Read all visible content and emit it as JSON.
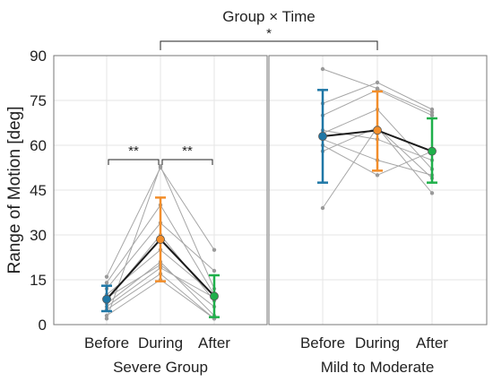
{
  "chart_data": {
    "type": "line",
    "title": "Group × Time",
    "title_annotation": "*",
    "ylabel": "Range of Motion [deg]",
    "ylim": [
      0,
      90
    ],
    "yticks": [
      0,
      15,
      30,
      45,
      60,
      75,
      90
    ],
    "grid": true,
    "time_points": [
      "Before",
      "During",
      "After"
    ],
    "time_colors": [
      "#1f77a6",
      "#f28e2b",
      "#1fb04a"
    ],
    "individual_line_color": "#a6a6a6",
    "mean_line_color": "#1a1a1a",
    "groups": [
      {
        "name": "Severe Group",
        "mean": [
          8.5,
          28.5,
          9.5
        ],
        "error_low": [
          4.5,
          14.5,
          2.5
        ],
        "error_high": [
          13,
          42.5,
          16.5
        ],
        "individuals": [
          [
            16,
            52.5,
            25
          ],
          [
            14,
            40,
            10
          ],
          [
            12,
            34,
            18
          ],
          [
            10,
            25,
            10
          ],
          [
            9,
            20,
            6
          ],
          [
            8,
            30,
            8
          ],
          [
            7,
            21,
            3
          ],
          [
            5,
            17,
            2
          ],
          [
            3,
            15,
            2
          ],
          [
            2,
            53,
            12
          ],
          [
            6,
            19,
            9
          ]
        ],
        "significance": [
          {
            "from": 0,
            "to": 1,
            "label": "**"
          },
          {
            "from": 1,
            "to": 2,
            "label": "**"
          }
        ]
      },
      {
        "name": "Mild to Moderate",
        "mean": [
          63,
          65,
          58
        ],
        "error_low": [
          47.5,
          51.5,
          47.5
        ],
        "error_high": [
          78.5,
          78,
          69
        ],
        "individuals": [
          [
            85.5,
            79,
            71
          ],
          [
            74,
            81,
            72
          ],
          [
            70,
            78.5,
            70
          ],
          [
            65,
            62,
            55
          ],
          [
            62,
            55,
            50
          ],
          [
            60,
            50,
            58
          ],
          [
            58,
            66,
            49
          ],
          [
            64,
            72,
            52
          ],
          [
            39,
            66,
            44
          ]
        ],
        "significance": []
      }
    ]
  }
}
